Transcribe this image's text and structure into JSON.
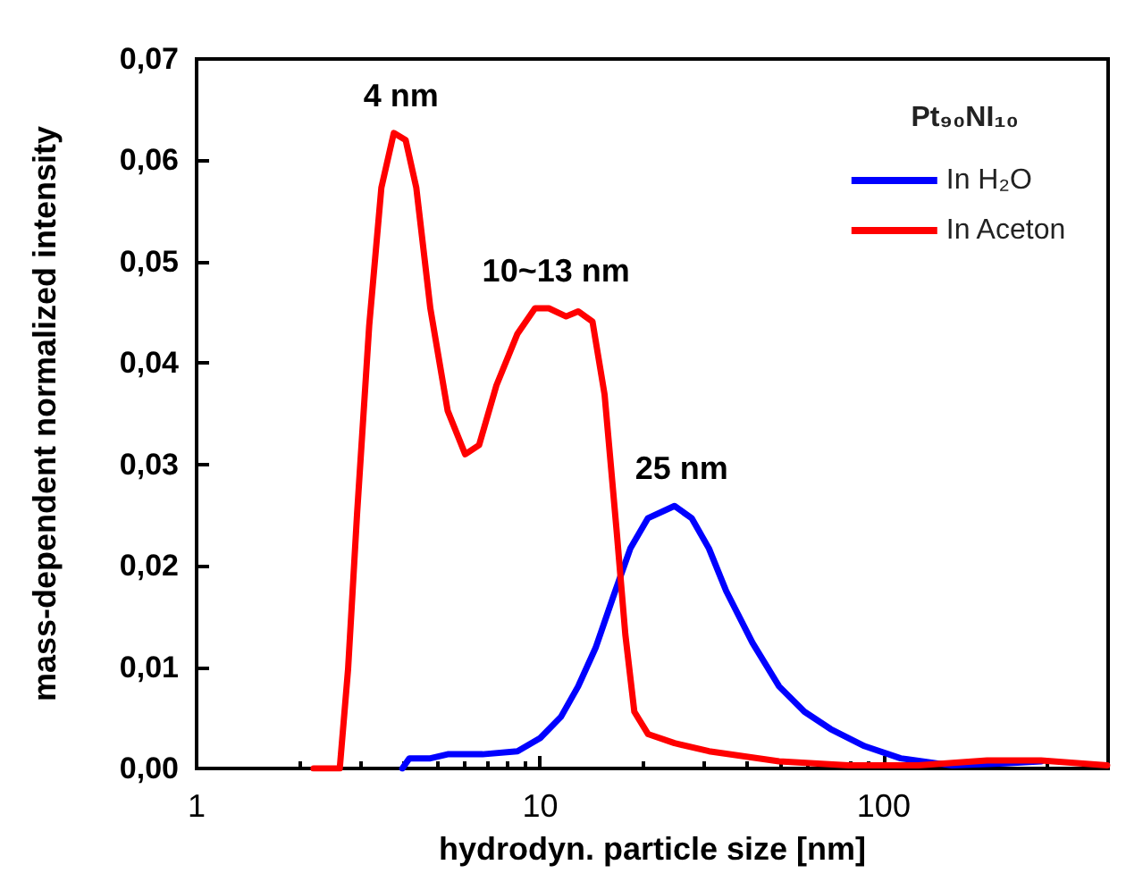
{
  "chart_data": {
    "type": "line",
    "xlabel": "hydrodyn. particle size [nm]",
    "ylabel": "mass-dependent normalized intensity",
    "legend_title": "Pt₉₀NI₁₀",
    "legend": "top right",
    "log": "x",
    "grid": false,
    "marker": "none",
    "line_style": "solid",
    "xlim": [
      1,
      450
    ],
    "xticks": [
      1,
      10,
      100
    ],
    "ylim": [
      0,
      0.07
    ],
    "yticks": [
      {
        "value": 0,
        "label": "0,00"
      },
      {
        "value": 0.01,
        "label": "0,01"
      },
      {
        "value": 0.02,
        "label": "0,02"
      },
      {
        "value": 0.03,
        "label": "0,03"
      },
      {
        "value": 0.04,
        "label": "0,04"
      },
      {
        "value": 0.05,
        "label": "0,05"
      },
      {
        "value": 0.06,
        "label": "0,06"
      },
      {
        "value": 0.07,
        "label": "0,07"
      }
    ],
    "annotations": [
      {
        "text": "4 nm",
        "x": 3.75,
        "y": 0.0627
      },
      {
        "text": "10~13 nm",
        "x": 10.6,
        "y": 0.0454
      },
      {
        "text": "25 nm",
        "x": 24.6,
        "y": 0.0259
      }
    ],
    "series": [
      {
        "name": "In H₂O",
        "color": "#0000ff",
        "x": [
          3.97,
          4.16,
          4.79,
          5.38,
          6.8,
          8.59,
          10,
          11.5,
          12.9,
          14.5,
          16.3,
          18.3,
          20.6,
          24.6,
          27.6,
          31,
          34.8,
          41.5,
          49.6,
          58.8,
          70,
          88,
          112,
          158,
          226,
          287
        ],
        "values": [
          0,
          0.001,
          0.001,
          0.0014,
          0.0014,
          0.0017,
          0.003,
          0.0051,
          0.0081,
          0.0119,
          0.0169,
          0.0217,
          0.0247,
          0.0259,
          0.0247,
          0.0217,
          0.0175,
          0.0124,
          0.0081,
          0.0056,
          0.0039,
          0.0022,
          0.001,
          0.0003,
          0.0005,
          0.0007
        ]
      },
      {
        "name": "In Aceton",
        "color": "#ff0000",
        "x": [
          2.19,
          2.61,
          2.76,
          2.93,
          3.18,
          3.45,
          3.75,
          4.06,
          4.36,
          4.79,
          5.38,
          6.05,
          6.64,
          7.46,
          8.59,
          9.66,
          10.6,
          11.9,
          12.9,
          14.2,
          15.4,
          16.7,
          17.7,
          18.8,
          20.6,
          24.6,
          31,
          49.6,
          79,
          126,
          200,
          287,
          447
        ],
        "values": [
          0,
          0,
          0.0098,
          0.025,
          0.0437,
          0.0573,
          0.0627,
          0.062,
          0.0573,
          0.0454,
          0.0353,
          0.031,
          0.0319,
          0.0378,
          0.0429,
          0.0454,
          0.0454,
          0.0446,
          0.0451,
          0.0441,
          0.0369,
          0.0234,
          0.0132,
          0.0056,
          0.0034,
          0.0025,
          0.0017,
          0.0007,
          0.0003,
          0.0003,
          0.0008,
          0.0008,
          0.0003
        ]
      }
    ]
  }
}
